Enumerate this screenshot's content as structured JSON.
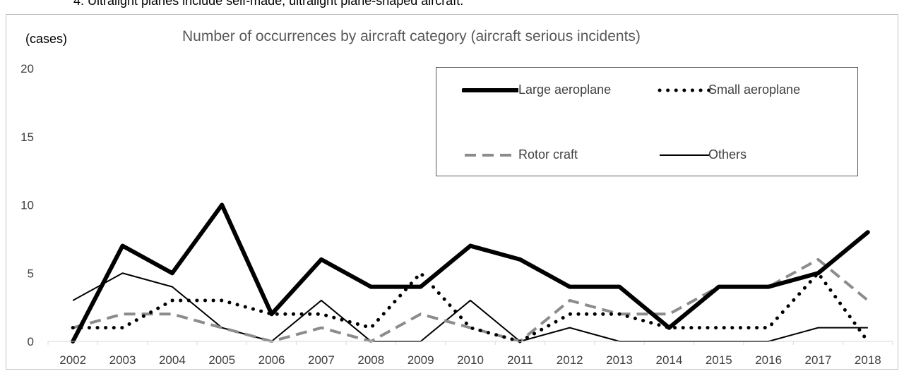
{
  "note": "4. Ultralight planes include self-made, ultralight plane-shaped aircraft.",
  "chart_data": {
    "type": "line",
    "title": "Number of occurrences by aircraft category (aircraft serious incidents)",
    "ylabel": "(cases)",
    "xlabel": "",
    "ylim": [
      0,
      20
    ],
    "yticks": [
      0,
      5,
      10,
      15,
      20
    ],
    "grid": false,
    "legend_position": "top-right",
    "x": [
      "2002",
      "2003",
      "2004",
      "2005",
      "2006",
      "2007",
      "2008",
      "2009",
      "2010",
      "2011",
      "2012",
      "2013",
      "2014",
      "2015",
      "2016",
      "2017",
      "2018"
    ],
    "series": [
      {
        "name": "Large aeroplane",
        "style": "thick-solid",
        "color": "#000000",
        "values": [
          0,
          7,
          5,
          10,
          2,
          6,
          4,
          4,
          7,
          6,
          4,
          4,
          1,
          4,
          4,
          5,
          8
        ]
      },
      {
        "name": "Small aeroplane",
        "style": "dotted",
        "color": "#000000",
        "values": [
          1,
          1,
          3,
          3,
          2,
          2,
          1,
          5,
          1,
          0,
          2,
          2,
          1,
          1,
          1,
          5,
          0
        ]
      },
      {
        "name": "Rotor craft",
        "style": "dashed",
        "color": "#8c8c8c",
        "values": [
          1,
          2,
          2,
          1,
          0,
          1,
          0,
          2,
          1,
          0,
          3,
          2,
          2,
          4,
          4,
          6,
          3
        ]
      },
      {
        "name": "Others",
        "style": "thin-solid",
        "color": "#000000",
        "values": [
          3,
          5,
          4,
          1,
          0,
          3,
          0,
          0,
          3,
          0,
          1,
          0,
          0,
          0,
          0,
          1,
          1
        ]
      }
    ]
  }
}
